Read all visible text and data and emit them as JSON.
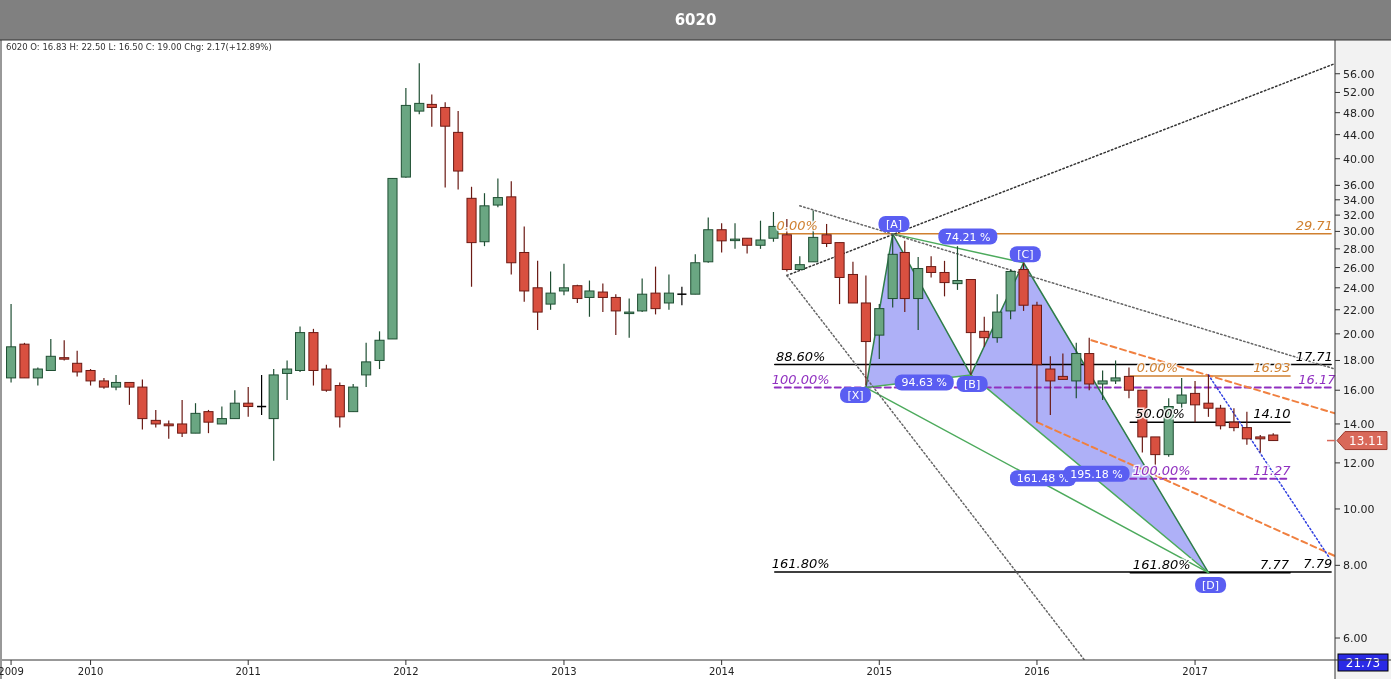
{
  "chart_data": {
    "type": "candlestick",
    "title": "6020",
    "subtitle": "6020  O: 16.83  H: 22.50  L: 16.50  C: 19.00  Chg: 2.17(+12.89%)",
    "log": "y",
    "xlim": [
      "2009-06-10",
      "2017-11-21"
    ],
    "xticks": [
      {
        "value": "2009-07",
        "label": "2009"
      },
      {
        "value": "2010-01",
        "label": "2010"
      },
      {
        "value": "2011-01",
        "label": "2011"
      },
      {
        "value": "2012-01",
        "label": "2012"
      },
      {
        "value": "2013-01",
        "label": "2013"
      },
      {
        "value": "2014-01",
        "label": "2014"
      },
      {
        "value": "2015-01",
        "label": "2015"
      },
      {
        "value": "2016-01",
        "label": "2016"
      },
      {
        "value": "2017-01",
        "label": "2017"
      }
    ],
    "ylim": [
      5.5,
      64
    ],
    "yticks": [
      {
        "value": 6,
        "label": "6.00"
      },
      {
        "value": 8,
        "label": "8.00"
      },
      {
        "value": 10,
        "label": "10.00"
      },
      {
        "value": 12,
        "label": "12.00"
      },
      {
        "value": 14,
        "label": "14.00"
      },
      {
        "value": 16,
        "label": "16.00"
      },
      {
        "value": 18,
        "label": "18.00"
      },
      {
        "value": 20,
        "label": "20.00"
      },
      {
        "value": 22,
        "label": "22.00"
      },
      {
        "value": 24,
        "label": "24.00"
      },
      {
        "value": 26,
        "label": "26.00"
      },
      {
        "value": 28,
        "label": "28.00"
      },
      {
        "value": 30,
        "label": "30.00"
      },
      {
        "value": 32,
        "label": "32.00"
      },
      {
        "value": 34,
        "label": "34.00"
      },
      {
        "value": 36,
        "label": "36.00"
      },
      {
        "value": 40,
        "label": "40.00"
      },
      {
        "value": 44,
        "label": "44.00"
      },
      {
        "value": 48,
        "label": "48.00"
      },
      {
        "value": 52,
        "label": "52.00"
      },
      {
        "value": 56,
        "label": "56.00"
      }
    ],
    "x": [
      "2009-07",
      "2009-08",
      "2009-09",
      "2009-10",
      "2009-11",
      "2009-12",
      "2010-01",
      "2010-02",
      "2010-03",
      "2010-04",
      "2010-05",
      "2010-06",
      "2010-07",
      "2010-08",
      "2010-09",
      "2010-10",
      "2010-11",
      "2010-12",
      "2011-01",
      "2011-02",
      "2011-03",
      "2011-04",
      "2011-05",
      "2011-06",
      "2011-07",
      "2011-08",
      "2011-09",
      "2011-10",
      "2011-11",
      "2011-12",
      "2012-01",
      "2012-02",
      "2012-03",
      "2012-04",
      "2012-05",
      "2012-06",
      "2012-07",
      "2012-08",
      "2012-09",
      "2012-10",
      "2012-11",
      "2012-12",
      "2013-01",
      "2013-02",
      "2013-03",
      "2013-04",
      "2013-05",
      "2013-06",
      "2013-07",
      "2013-08",
      "2013-09",
      "2013-10",
      "2013-11",
      "2013-12",
      "2014-01",
      "2014-02",
      "2014-03",
      "2014-04",
      "2014-05",
      "2014-06",
      "2014-07",
      "2014-08",
      "2014-09",
      "2014-10",
      "2014-11",
      "2014-12",
      "2015-01",
      "2015-02",
      "2015-03",
      "2015-04",
      "2015-05",
      "2015-06",
      "2015-07",
      "2015-08",
      "2015-09",
      "2015-10",
      "2015-11",
      "2015-12",
      "2016-01",
      "2016-02",
      "2016-03",
      "2016-04",
      "2016-05",
      "2016-06",
      "2016-07",
      "2016-08",
      "2016-09",
      "2016-10",
      "2016-11",
      "2016-12",
      "2017-01",
      "2017-02",
      "2017-03",
      "2017-04",
      "2017-05",
      "2017-06",
      "2017-07"
    ],
    "ohlc": [
      [
        16.8,
        22.5,
        16.5,
        19.0
      ],
      [
        19.2,
        19.3,
        16.8,
        16.8
      ],
      [
        16.8,
        17.5,
        16.3,
        17.4
      ],
      [
        17.3,
        19.6,
        17.3,
        18.3
      ],
      [
        18.2,
        19.5,
        18.0,
        18.1
      ],
      [
        17.8,
        18.7,
        16.9,
        17.2
      ],
      [
        17.3,
        17.4,
        16.3,
        16.6
      ],
      [
        16.6,
        16.8,
        16.1,
        16.2
      ],
      [
        16.2,
        17.0,
        16.0,
        16.5
      ],
      [
        16.5,
        16.5,
        15.1,
        16.2
      ],
      [
        16.2,
        16.7,
        13.7,
        14.3
      ],
      [
        14.2,
        14.8,
        13.8,
        14.0
      ],
      [
        14.0,
        14.2,
        13.2,
        13.9
      ],
      [
        14.0,
        15.4,
        13.3,
        13.5
      ],
      [
        13.5,
        15.2,
        13.5,
        14.6
      ],
      [
        14.7,
        14.8,
        13.5,
        14.1
      ],
      [
        14.0,
        15.0,
        14.0,
        14.3
      ],
      [
        14.3,
        16.0,
        14.3,
        15.2
      ],
      [
        15.2,
        16.2,
        14.4,
        15.0
      ],
      [
        15.0,
        17.0,
        14.5,
        15.0
      ],
      [
        14.3,
        17.4,
        12.1,
        17.0
      ],
      [
        17.1,
        18.0,
        15.4,
        17.4
      ],
      [
        17.3,
        20.6,
        17.2,
        20.1
      ],
      [
        20.1,
        20.4,
        16.3,
        17.3
      ],
      [
        17.4,
        17.7,
        15.9,
        16.0
      ],
      [
        16.3,
        16.5,
        13.8,
        14.4
      ],
      [
        14.7,
        16.4,
        14.7,
        16.2
      ],
      [
        17.0,
        19.3,
        16.2,
        17.9
      ],
      [
        18.0,
        20.2,
        17.4,
        19.5
      ],
      [
        19.6,
        37.0,
        19.6,
        37.0
      ],
      [
        37.2,
        52.9,
        37.1,
        49.4
      ],
      [
        48.3,
        58.4,
        47.7,
        49.8
      ],
      [
        49.6,
        51.6,
        45.4,
        49.0
      ],
      [
        49.0,
        50.0,
        35.7,
        45.5
      ],
      [
        44.4,
        48.3,
        35.4,
        38.1
      ],
      [
        34.2,
        35.8,
        24.1,
        28.7
      ],
      [
        28.8,
        34.9,
        28.3,
        33.2
      ],
      [
        33.3,
        37.0,
        33.0,
        34.3
      ],
      [
        34.4,
        36.6,
        25.3,
        26.5
      ],
      [
        27.6,
        30.6,
        22.7,
        23.7
      ],
      [
        24.0,
        26.7,
        20.3,
        21.8
      ],
      [
        22.5,
        25.6,
        22.0,
        23.5
      ],
      [
        23.7,
        26.4,
        23.3,
        24.0
      ],
      [
        24.2,
        24.3,
        22.6,
        23.0
      ],
      [
        23.1,
        24.7,
        21.4,
        23.7
      ],
      [
        23.6,
        24.4,
        21.8,
        23.1
      ],
      [
        23.1,
        23.4,
        19.9,
        21.9
      ],
      [
        21.7,
        23.0,
        19.7,
        21.8
      ],
      [
        21.9,
        24.9,
        21.8,
        23.4
      ],
      [
        23.5,
        26.1,
        21.6,
        22.1
      ],
      [
        22.6,
        25.3,
        22.0,
        23.5
      ],
      [
        23.4,
        24.1,
        22.4,
        23.4
      ],
      [
        23.4,
        27.4,
        23.4,
        26.5
      ],
      [
        26.6,
        31.7,
        26.5,
        30.2
      ],
      [
        30.2,
        31.0,
        27.6,
        28.9
      ],
      [
        29.0,
        31.0,
        28.0,
        29.1
      ],
      [
        29.2,
        29.2,
        27.5,
        28.4
      ],
      [
        28.4,
        31.3,
        28.0,
        29.0
      ],
      [
        29.2,
        32.4,
        28.8,
        30.6
      ],
      [
        29.6,
        31.5,
        25.6,
        25.8
      ],
      [
        25.8,
        27.2,
        25.8,
        26.3
      ],
      [
        26.6,
        32.6,
        26.6,
        29.3
      ],
      [
        29.6,
        30.9,
        28.2,
        28.6
      ],
      [
        28.7,
        28.7,
        22.5,
        25.0
      ],
      [
        25.3,
        26.6,
        22.6,
        22.6
      ],
      [
        22.6,
        25.2,
        16.3,
        19.4
      ],
      [
        19.9,
        22.5,
        18.1,
        22.1
      ],
      [
        23.0,
        29.6,
        22.2,
        27.4
      ],
      [
        27.6,
        28.9,
        21.8,
        23.0
      ],
      [
        23.0,
        27.1,
        20.3,
        25.9
      ],
      [
        26.1,
        27.2,
        25.0,
        25.5
      ],
      [
        25.5,
        26.7,
        23.2,
        24.5
      ],
      [
        24.4,
        28.3,
        23.8,
        24.7
      ],
      [
        24.8,
        24.8,
        17.0,
        20.1
      ],
      [
        20.2,
        21.4,
        19.0,
        19.7
      ],
      [
        19.7,
        23.4,
        19.3,
        21.8
      ],
      [
        21.9,
        25.8,
        21.2,
        25.6
      ],
      [
        25.8,
        26.5,
        21.9,
        22.4
      ],
      [
        22.4,
        22.7,
        14.1,
        17.7
      ],
      [
        17.4,
        18.3,
        14.5,
        16.6
      ],
      [
        16.9,
        18.5,
        16.7,
        16.7
      ],
      [
        16.6,
        19.3,
        15.5,
        18.5
      ],
      [
        18.5,
        19.7,
        16.0,
        16.4
      ],
      [
        16.4,
        17.3,
        15.4,
        16.6
      ],
      [
        16.6,
        18.0,
        16.4,
        16.8
      ],
      [
        16.9,
        17.5,
        15.5,
        16.0
      ],
      [
        16.0,
        16.0,
        12.5,
        13.3
      ],
      [
        13.3,
        13.3,
        11.4,
        12.4
      ],
      [
        12.4,
        15.5,
        12.3,
        15.0
      ],
      [
        15.2,
        16.8,
        14.8,
        15.7
      ],
      [
        15.8,
        16.6,
        14.1,
        15.1
      ],
      [
        15.2,
        17.0,
        14.4,
        14.9
      ],
      [
        14.9,
        15.1,
        13.7,
        13.9
      ],
      [
        14.1,
        14.9,
        13.6,
        13.8
      ],
      [
        13.8,
        14.7,
        12.9,
        13.2
      ],
      [
        13.3,
        13.4,
        12.5,
        13.2
      ],
      [
        13.4,
        13.5,
        13.1,
        13.11
      ]
    ],
    "series": [
      {
        "type": "area",
        "color": "#6c70f0",
        "x": [
          "2014-12",
          "2015-02",
          "2015-08"
        ],
        "values": [
          16.17,
          29.71,
          17.0
        ]
      },
      {
        "type": "area",
        "color": "#6c70f0",
        "x": [
          "2015-08",
          "2015-12",
          "2017-02"
        ],
        "values": [
          17.0,
          26.5,
          7.77
        ]
      },
      {
        "type": "line",
        "color": "#d08030",
        "x": [
          "2014-05-04",
          "2017-11-12"
        ],
        "values": [
          29.71,
          29.71
        ]
      },
      {
        "type": "line",
        "color": "#000000",
        "x": [
          "2014-05-04",
          "2017-11-12"
        ],
        "values": [
          17.71,
          17.71
        ]
      },
      {
        "type": "line",
        "color": "#9030c0",
        "line_style": "dashed",
        "x": [
          "2014-05-04",
          "2017-11-12"
        ],
        "values": [
          16.17,
          16.17
        ]
      },
      {
        "type": "line",
        "color": "#000000",
        "x": [
          "2014-05-04",
          "2017-11-12"
        ],
        "values": [
          7.79,
          7.79
        ]
      },
      {
        "type": "line",
        "color": "#d08030",
        "x": [
          "2016-08-04",
          "2017-08-09"
        ],
        "values": [
          16.93,
          16.93
        ]
      },
      {
        "type": "line",
        "color": "#000000",
        "x": [
          "2016-08-04",
          "2017-08-09"
        ],
        "values": [
          14.1,
          14.1
        ]
      },
      {
        "type": "line",
        "color": "#9030c0",
        "line_style": "dashed",
        "x": [
          "2016-08-04",
          "2017-08-09"
        ],
        "values": [
          11.27,
          11.27
        ]
      },
      {
        "type": "line",
        "color": "#000000",
        "x": [
          "2016-08-04",
          "2017-08-09"
        ],
        "values": [
          7.77,
          7.77
        ]
      },
      {
        "type": "line",
        "color": "#2e7d4a",
        "x": [
          "2014-12",
          "2015-02",
          "2015-08",
          "2015-12",
          "2017-02"
        ],
        "values": [
          16.17,
          29.71,
          17.0,
          26.5,
          7.77
        ]
      },
      {
        "type": "line",
        "color": "#4caa5c",
        "x": [
          "2014-12",
          "2015-08"
        ],
        "values": [
          16.17,
          17.0
        ]
      },
      {
        "type": "line",
        "color": "#4caa5c",
        "x": [
          "2015-02",
          "2015-12"
        ],
        "values": [
          29.71,
          26.5
        ]
      },
      {
        "type": "line",
        "color": "#4caa5c",
        "x": [
          "2015-08",
          "2017-02"
        ],
        "values": [
          17.0,
          7.77
        ]
      },
      {
        "type": "line",
        "color": "#4caa5c",
        "x": [
          "2014-12",
          "2017-02"
        ],
        "values": [
          16.17,
          7.77
        ]
      },
      {
        "type": "line",
        "color": "#333333",
        "line_style": "dotted",
        "x": [
          "2014-06-01",
          "2017-11-21"
        ],
        "values": [
          25.2,
          58.3
        ]
      },
      {
        "type": "line",
        "color": "#666666",
        "line_style": "dotted",
        "x": [
          "2014-06-01",
          "2016-04-20"
        ],
        "values": [
          25.2,
          5.5
        ]
      },
      {
        "type": "line",
        "color": "#666666",
        "line_style": "dotted",
        "x": [
          "2014-07-01",
          "2017-11-21"
        ],
        "values": [
          33.2,
          17.4
        ]
      },
      {
        "type": "line",
        "color": "#f08040",
        "line_style": "dashed",
        "x": [
          "2016-05-06",
          "2017-11-21"
        ],
        "values": [
          19.5,
          14.6
        ]
      },
      {
        "type": "line",
        "color": "#f08040",
        "line_style": "dashed",
        "x": [
          "2016-01-01",
          "2017-11-21"
        ],
        "values": [
          14.1,
          8.3
        ]
      },
      {
        "type": "line",
        "color": "#3040e0",
        "line_style": "dotted",
        "x": [
          "2017-02-01",
          "2017-11-10"
        ],
        "values": [
          17.0,
          8.2
        ]
      }
    ],
    "ref_lines": [
      {
        "axis": "y",
        "value": 13.11,
        "label": "13.11",
        "color": "#d9695a"
      }
    ],
    "annotations": [
      {
        "text": "0.00%",
        "x": "2014-06-25",
        "y": 29.71
      },
      {
        "text": "88.60%",
        "x": "2014-07-03",
        "y": 17.71
      },
      {
        "text": "100.00%",
        "x": "2014-07-03",
        "y": 16.17
      },
      {
        "text": "161.80%",
        "x": "2014-07-03",
        "y": 7.79
      },
      {
        "text": "0.00%",
        "x": "2016-10-06",
        "y": 16.93
      },
      {
        "text": "50.00%",
        "x": "2016-10-12",
        "y": 14.1
      },
      {
        "text": "100.00%",
        "x": "2016-10-16",
        "y": 11.27
      },
      {
        "text": "161.80%",
        "x": "2016-10-16",
        "y": 7.77
      },
      {
        "text": "29.71",
        "x": "2017-10-04",
        "y": 29.71
      },
      {
        "text": "17.71",
        "x": "2017-10-04",
        "y": 17.71
      },
      {
        "text": "16.17",
        "x": "2017-10-10",
        "y": 16.17
      },
      {
        "text": "7.79",
        "x": "2017-10-12",
        "y": 7.79
      },
      {
        "text": "16.93",
        "x": "2017-06-28",
        "y": 16.93
      },
      {
        "text": "14.10",
        "x": "2017-06-28",
        "y": 14.1
      },
      {
        "text": "11.27",
        "x": "2017-06-28",
        "y": 11.27
      },
      {
        "text": "7.77",
        "x": "2017-07-04",
        "y": 7.77
      },
      {
        "text": "[X]",
        "x": "2014-11-07",
        "y": 15.7
      },
      {
        "text": "[A]",
        "x": "2015-02-04",
        "y": 30.9
      },
      {
        "text": "[B]",
        "x": "2015-08-04",
        "y": 16.4
      },
      {
        "text": "[C]",
        "x": "2015-12-05",
        "y": 27.4
      },
      {
        "text": "[D]",
        "x": "2017-02-06",
        "y": 7.4
      },
      {
        "text": "74.21 %",
        "x": "2015-07-25",
        "y": 29.4
      },
      {
        "text": "94.63 %",
        "x": "2015-04-15",
        "y": 16.5
      },
      {
        "text": "161.48 %",
        "x": "2016-01-15",
        "y": 11.29
      },
      {
        "text": "195.18 %",
        "x": "2016-05-18",
        "y": 11.5
      },
      "21.73"
    ]
  }
}
